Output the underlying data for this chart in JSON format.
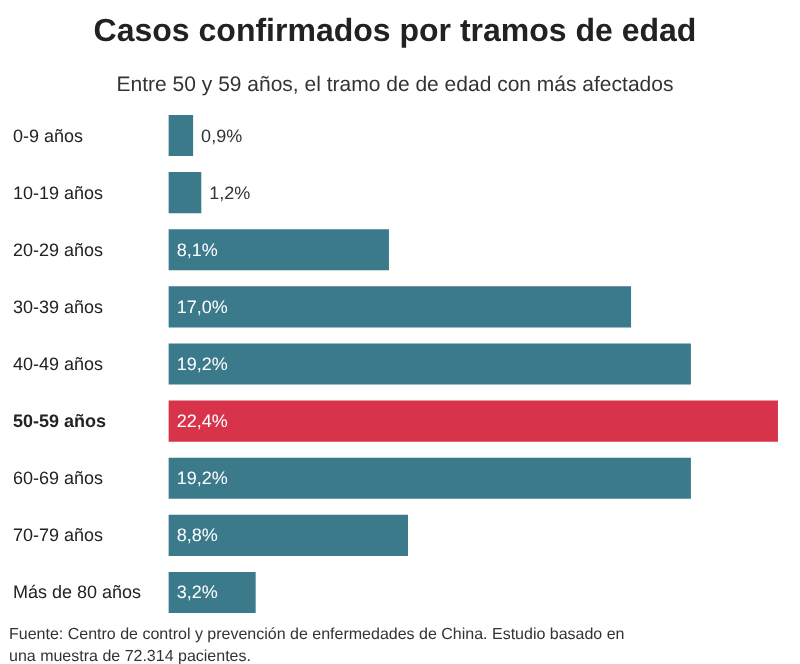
{
  "chart_data": {
    "type": "bar",
    "orientation": "horizontal",
    "title": "Casos confirmados por tramos de edad",
    "subtitle": "Entre 50 y 59 años, el tramo de de edad con más afectados",
    "categories": [
      "0-9 años",
      "10-19 años",
      "20-29 años",
      "30-39 años",
      "40-49 años",
      "50-59 años",
      "60-69 años",
      "70-79 años",
      "Más de 80 años"
    ],
    "values": [
      0.9,
      1.2,
      8.1,
      17.0,
      19.2,
      22.4,
      19.2,
      8.8,
      3.2
    ],
    "value_labels": [
      "0,9%",
      "1,2%",
      "8,1%",
      "17,0%",
      "19,2%",
      "22,4%",
      "19,2%",
      "8,8%",
      "3,2%"
    ],
    "colors": [
      "#3b7a8b",
      "#3b7a8b",
      "#3b7a8b",
      "#3b7a8b",
      "#3b7a8b",
      "#d7344b",
      "#3b7a8b",
      "#3b7a8b",
      "#3b7a8b"
    ],
    "grid": false,
    "annotations": [
      "Fuente: Centro de control y prevención de enfermedades de China. Estudio basado en una muestra de 72.314 pacientes."
    ]
  }
}
